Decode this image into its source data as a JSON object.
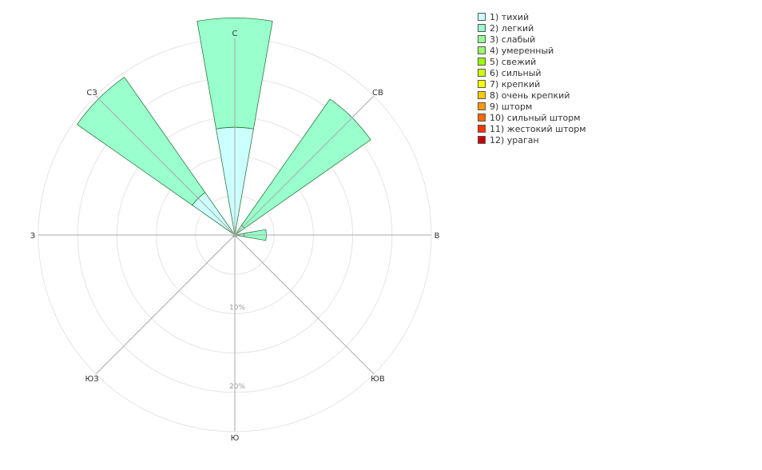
{
  "chart_data": {
    "type": "wind_rose",
    "directions": [
      "С",
      "СВ",
      "В",
      "ЮВ",
      "Ю",
      "ЮЗ",
      "З",
      "СЗ"
    ],
    "rings": [
      {
        "value": 10,
        "label": "10%"
      },
      {
        "value": 20,
        "label": "20%"
      }
    ],
    "max_value": 25,
    "legend_placement": "top-right",
    "series": [
      {
        "name": "1) тихий",
        "color": "#ccffff",
        "values": [
          13.7,
          1.5,
          1.2,
          0.3,
          0,
          0.3,
          0,
          6.6
        ]
      },
      {
        "name": "2) легкий",
        "color": "#99ffcc",
        "values": [
          13.9,
          19.6,
          2.8,
          0,
          0,
          0,
          0,
          17.9
        ]
      },
      {
        "name": "3) слабый",
        "color": "#99ff99",
        "values": [
          0,
          0,
          0,
          0,
          0,
          0,
          0,
          0
        ]
      },
      {
        "name": "4) умеренный",
        "color": "#99ff66",
        "values": [
          0,
          0,
          0,
          0,
          0,
          0,
          0,
          0
        ]
      },
      {
        "name": "5) свежий",
        "color": "#99ff00",
        "values": [
          0,
          0,
          0,
          0,
          0,
          0,
          0,
          0
        ]
      },
      {
        "name": "6) сильный",
        "color": "#ccff00",
        "values": [
          0,
          0,
          0,
          0,
          0,
          0,
          0,
          0
        ]
      },
      {
        "name": "7) крепкий",
        "color": "#ffff00",
        "values": [
          0,
          0,
          0,
          0,
          0,
          0,
          0,
          0
        ]
      },
      {
        "name": "8) очень крепкий",
        "color": "#ffcc00",
        "values": [
          0,
          0,
          0,
          0,
          0,
          0,
          0,
          0
        ]
      },
      {
        "name": "9) шторм",
        "color": "#ff9900",
        "values": [
          0,
          0,
          0,
          0,
          0,
          0,
          0,
          0
        ]
      },
      {
        "name": "10) сильный шторм",
        "color": "#ff6600",
        "values": [
          0,
          0,
          0,
          0,
          0,
          0,
          0,
          0
        ]
      },
      {
        "name": "11) жестокий шторм",
        "color": "#ff3300",
        "values": [
          0,
          0,
          0,
          0,
          0,
          0,
          0,
          0
        ]
      },
      {
        "name": "12) ураган",
        "color": "#cc0000",
        "values": [
          0,
          0,
          0,
          0,
          0,
          0,
          0,
          0
        ]
      }
    ]
  }
}
